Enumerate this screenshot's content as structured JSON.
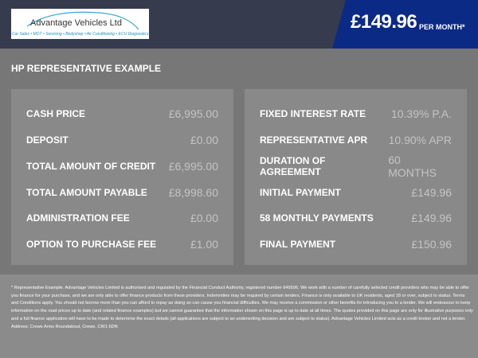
{
  "header": {
    "logo_name": "Advantage Vehicles Ltd",
    "logo_tagline": "Car Sales • MOT • Servicing • Bodyshop • Air Conditioning • ECU Diagnostics",
    "monthly_price": "£149.96",
    "per_month": "PER MONTH*"
  },
  "title": "HP REPRESENTATIVE EXAMPLE",
  "left": [
    {
      "label": "CASH PRICE",
      "value": "£6,995.00"
    },
    {
      "label": "DEPOSIT",
      "value": "£0.00"
    },
    {
      "label": "TOTAL AMOUNT OF CREDIT",
      "value": "£6,995.00"
    },
    {
      "label": "TOTAL AMOUNT PAYABLE",
      "value": "£8,998.60"
    },
    {
      "label": "ADMINISTRATION FEE",
      "value": "£0.00"
    },
    {
      "label": "OPTION TO PURCHASE FEE",
      "value": "£1.00"
    }
  ],
  "right": [
    {
      "label": "FIXED INTEREST RATE",
      "value": "10.39% P.A."
    },
    {
      "label": "REPRESENTATIVE APR",
      "value": "10.90% APR"
    },
    {
      "label": "DURATION OF AGREEMENT",
      "value": "60 MONTHS"
    },
    {
      "label": "INITIAL PAYMENT",
      "value": "£149.96"
    },
    {
      "label": "58 MONTHLY PAYMENTS",
      "value": "£149.96"
    },
    {
      "label": "FINAL PAYMENT",
      "value": "£150.96"
    }
  ],
  "disclaimer": "* Representative Example. Advantage Vehicles Limited is authorised and regulated by the Financial Conduct Authority, registered number 649506. We work with a number of carefully selected credit providers who may be able to offer you finance for your purchase, and we are only able to offer finance products from these providers. Indemnities may be required by certain lenders. Finance is only available to UK residents, aged 18 or over, subject to status. Terms and Conditions apply. You should not borrow more than you can afford to repay as doing so can cause you financial difficulties. We may receive a commission or other benefits for introducing you to a lender. We will endeavour to keep information on the road prices up to date (and related finance examples) but we cannot guarantee that the information shown on this page is up to date at all times. The quotes provided on this page are only for illustrative purposes only and a full finance application will have to be made to determine the exact details (all applications are subject to an underwriting decision and are subject to status). Advantage Vehicles Limited acts as a credit broker and not a lender. Address: Crewe Arms Roundabout, Crewe, CW1 6DN",
  "colors": {
    "header": "#363b4d",
    "price_panel": "#0b2a86",
    "main": "#777777",
    "box": "#898989"
  }
}
